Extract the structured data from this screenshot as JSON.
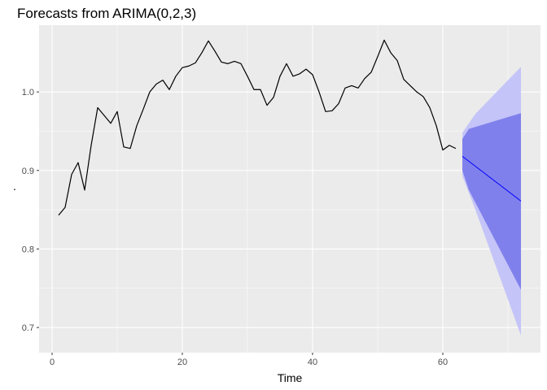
{
  "chart_data": {
    "type": "line",
    "title": "Forecasts from ARIMA(0,2,3)",
    "xlabel": "Time",
    "ylabel": ".",
    "xlim": [
      -2,
      75
    ],
    "ylim": [
      0.668,
      1.085
    ],
    "x_ticks": [
      0,
      20,
      40,
      60
    ],
    "y_ticks": [
      0.7,
      0.8,
      0.9,
      1.0
    ],
    "y_tick_labels": [
      "0.7",
      "0.8",
      "0.9",
      "1.0"
    ],
    "grid": true,
    "colors": {
      "panel": "#ebebeb",
      "grid_major": "#ffffff",
      "observed": "#000000",
      "forecast": "#0000ff",
      "pi95": "#c4c4f8",
      "pi80": "#8080ec"
    },
    "series": [
      {
        "role": "observed",
        "x": [
          1,
          2,
          3,
          4,
          5,
          6,
          7,
          8,
          9,
          10,
          11,
          12,
          13,
          14,
          15,
          16,
          17,
          18,
          19,
          20,
          21,
          22,
          23,
          24,
          25,
          26,
          27,
          28,
          29,
          30,
          31,
          32,
          33,
          34,
          35,
          36,
          37,
          38,
          39,
          40,
          41,
          42,
          43,
          44,
          45,
          46,
          47,
          48,
          49,
          50,
          51,
          52,
          53,
          54,
          55,
          56,
          57,
          58,
          59,
          60,
          61,
          62
        ],
        "values": [
          0.843,
          0.853,
          0.895,
          0.91,
          0.875,
          0.932,
          0.98,
          0.97,
          0.96,
          0.975,
          0.93,
          0.928,
          0.957,
          0.978,
          1.0,
          1.01,
          1.015,
          1.003,
          1.02,
          1.031,
          1.033,
          1.037,
          1.05,
          1.065,
          1.052,
          1.038,
          1.036,
          1.039,
          1.036,
          1.02,
          1.003,
          1.003,
          0.983,
          0.993,
          1.02,
          1.036,
          1.02,
          1.023,
          1.029,
          1.022,
          1.0,
          0.975,
          0.976,
          0.985,
          1.005,
          1.008,
          1.005,
          1.017,
          1.025,
          1.045,
          1.066,
          1.05,
          1.04,
          1.016,
          1.008,
          1.0,
          0.994,
          0.98,
          0.957,
          0.926,
          0.932,
          0.928
        ]
      },
      {
        "role": "forecast",
        "x": [
          63,
          72
        ],
        "values": [
          0.918,
          0.861
        ]
      }
    ],
    "intervals": [
      {
        "level": 95,
        "x": [
          63,
          65,
          72
        ],
        "lower": [
          0.893,
          0.85,
          0.69
        ],
        "upper": [
          0.948,
          0.972,
          1.032
        ]
      },
      {
        "level": 80,
        "x": [
          63,
          64,
          72
        ],
        "lower": [
          0.9,
          0.875,
          0.748
        ],
        "upper": [
          0.94,
          0.953,
          0.973
        ]
      }
    ]
  }
}
